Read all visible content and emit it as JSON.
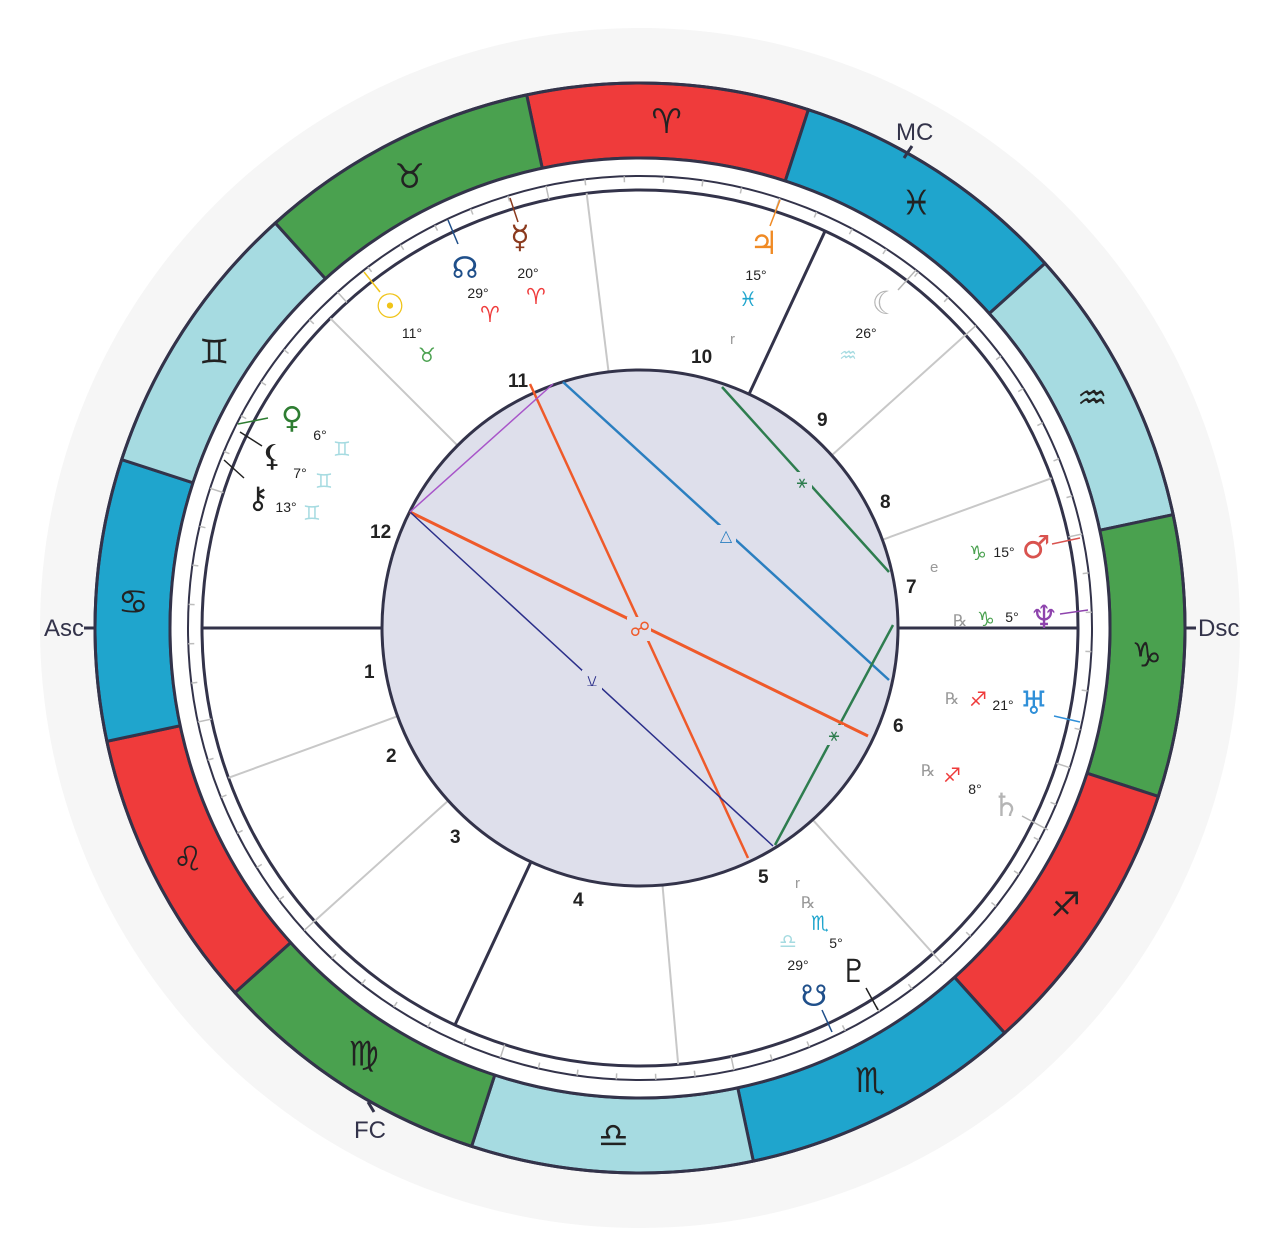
{
  "axes": {
    "asc": "Asc",
    "dsc": "Dsc",
    "mc": "MC",
    "fc": "FC"
  },
  "signs": [
    {
      "name": "aries",
      "glyph": "♈",
      "color": "#ef3b3b"
    },
    {
      "name": "pisces",
      "glyph": "♓",
      "color": "#1fa5cd"
    },
    {
      "name": "aquarius",
      "glyph": "♒",
      "color": "#a6dbe1"
    },
    {
      "name": "capricorn",
      "glyph": "♑",
      "color": "#4aa14f"
    },
    {
      "name": "sagittarius",
      "glyph": "♐",
      "color": "#ef3b3b"
    },
    {
      "name": "scorpio",
      "glyph": "♏",
      "color": "#1fa5cd"
    },
    {
      "name": "libra",
      "glyph": "♎",
      "color": "#a6dbe1"
    },
    {
      "name": "virgo",
      "glyph": "♍",
      "color": "#4aa14f"
    },
    {
      "name": "leo",
      "glyph": "♌",
      "color": "#ef3b3b"
    },
    {
      "name": "cancer",
      "glyph": "♋",
      "color": "#1fa5cd"
    },
    {
      "name": "gemini",
      "glyph": "♊",
      "color": "#a6dbe1"
    },
    {
      "name": "taurus",
      "glyph": "♉",
      "color": "#4aa14f"
    }
  ],
  "houses": [
    "1",
    "2",
    "3",
    "4",
    "5",
    "6",
    "7",
    "8",
    "9",
    "10",
    "11",
    "12"
  ],
  "planets": [
    {
      "name": "mercury",
      "glyph": "☿",
      "degree": "20°",
      "sign": "♈",
      "color": "#8b3a1e",
      "sign_color": "#ef3b3b"
    },
    {
      "name": "north-node",
      "glyph": "☊",
      "degree": "29°",
      "sign": "♈",
      "color": "#1f4f8a",
      "sign_color": "#ef3b3b"
    },
    {
      "name": "sun",
      "glyph": "☉",
      "degree": "11°",
      "sign": "♉",
      "color": "#f0c419",
      "sign_color": "#4aa14f"
    },
    {
      "name": "jupiter",
      "glyph": "♃",
      "degree": "15°",
      "sign": "♓",
      "color": "#f08a24",
      "sign_color": "#1fa5cd"
    },
    {
      "name": "moon",
      "glyph": "☾",
      "degree": "26°",
      "sign": "♒",
      "color": "#b5b5b5",
      "sign_color": "#a6dbe1"
    },
    {
      "name": "venus",
      "glyph": "♀",
      "degree": "6°",
      "sign": "♊",
      "color": "#2e7d32",
      "sign_color": "#a6dbe1"
    },
    {
      "name": "lilith",
      "glyph": "⚸",
      "degree": "7°",
      "sign": "♊",
      "color": "#222222",
      "sign_color": "#a6dbe1"
    },
    {
      "name": "chiron",
      "glyph": "⚷",
      "degree": "13°",
      "sign": "♊",
      "color": "#222222",
      "sign_color": "#a6dbe1"
    },
    {
      "name": "mars",
      "glyph": "♂",
      "degree": "15°",
      "sign": "♑",
      "color": "#d9534f",
      "sign_color": "#4aa14f"
    },
    {
      "name": "neptune",
      "glyph": "♆",
      "degree": "5°",
      "sign": "♑",
      "color": "#8e44ad",
      "sign_color": "#4aa14f",
      "retro": "℞"
    },
    {
      "name": "uranus",
      "glyph": "♅",
      "degree": "21°",
      "sign": "♐",
      "color": "#2f8fd8",
      "sign_color": "#ef3b3b",
      "retro": "℞"
    },
    {
      "name": "saturn",
      "glyph": "♄",
      "degree": "8°",
      "sign": "♐",
      "color": "#b5b5b5",
      "sign_color": "#ef3b3b",
      "retro": "℞"
    },
    {
      "name": "pluto",
      "glyph": "♇",
      "degree": "5°",
      "sign": "♏",
      "color": "#222222",
      "sign_color": "#1fa5cd",
      "retro": "℞"
    },
    {
      "name": "south-node",
      "glyph": "☋",
      "degree": "29°",
      "sign": "♎",
      "color": "#1f4f8a",
      "sign_color": "#a6dbe1"
    }
  ],
  "small_marks": {
    "r_top": "r",
    "e_right": "e",
    "r_bottom": "r"
  },
  "aspect_symbols": [
    "⚹",
    "△",
    "☍",
    "⚹",
    "⚺"
  ]
}
